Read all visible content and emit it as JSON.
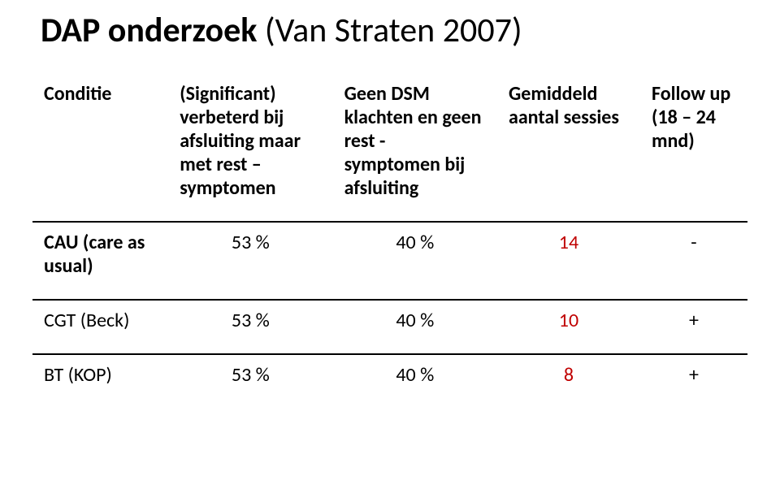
{
  "title": {
    "bold": "DAP onderzoek",
    "light": " (Van Straten 2007)"
  },
  "table": {
    "headers": {
      "c0": "Conditie",
      "c1": "(Significant) verbeterd bij afsluiting maar met rest – symptomen",
      "c2": "Geen DSM klachten en geen rest - symptomen bij afsluiting",
      "c3": "Gemiddeld aantal sessies",
      "c4": "Follow up (18 – 24 mnd)"
    },
    "rows": [
      {
        "label": "CAU (care as usual)",
        "v1": "53 %",
        "v2": "40 %",
        "v3": "14",
        "v4": "-",
        "v3_color": "#c00000"
      },
      {
        "label": "CGT   (Beck)",
        "v1": "53 %",
        "v2": "40 %",
        "v3": "10",
        "v4": "+",
        "v3_color": "#c00000"
      },
      {
        "label": "BT     (KOP)",
        "v1": "53 %",
        "v2": "40 %",
        "v3": "8",
        "v4": "+",
        "v3_color": "#c00000"
      }
    ]
  },
  "colors": {
    "text": "#000000",
    "highlight": "#c00000",
    "border": "#000000",
    "background": "#ffffff"
  },
  "typography": {
    "title_fontsize": 42,
    "table_fontsize": 24,
    "font_family": "Calibri"
  }
}
